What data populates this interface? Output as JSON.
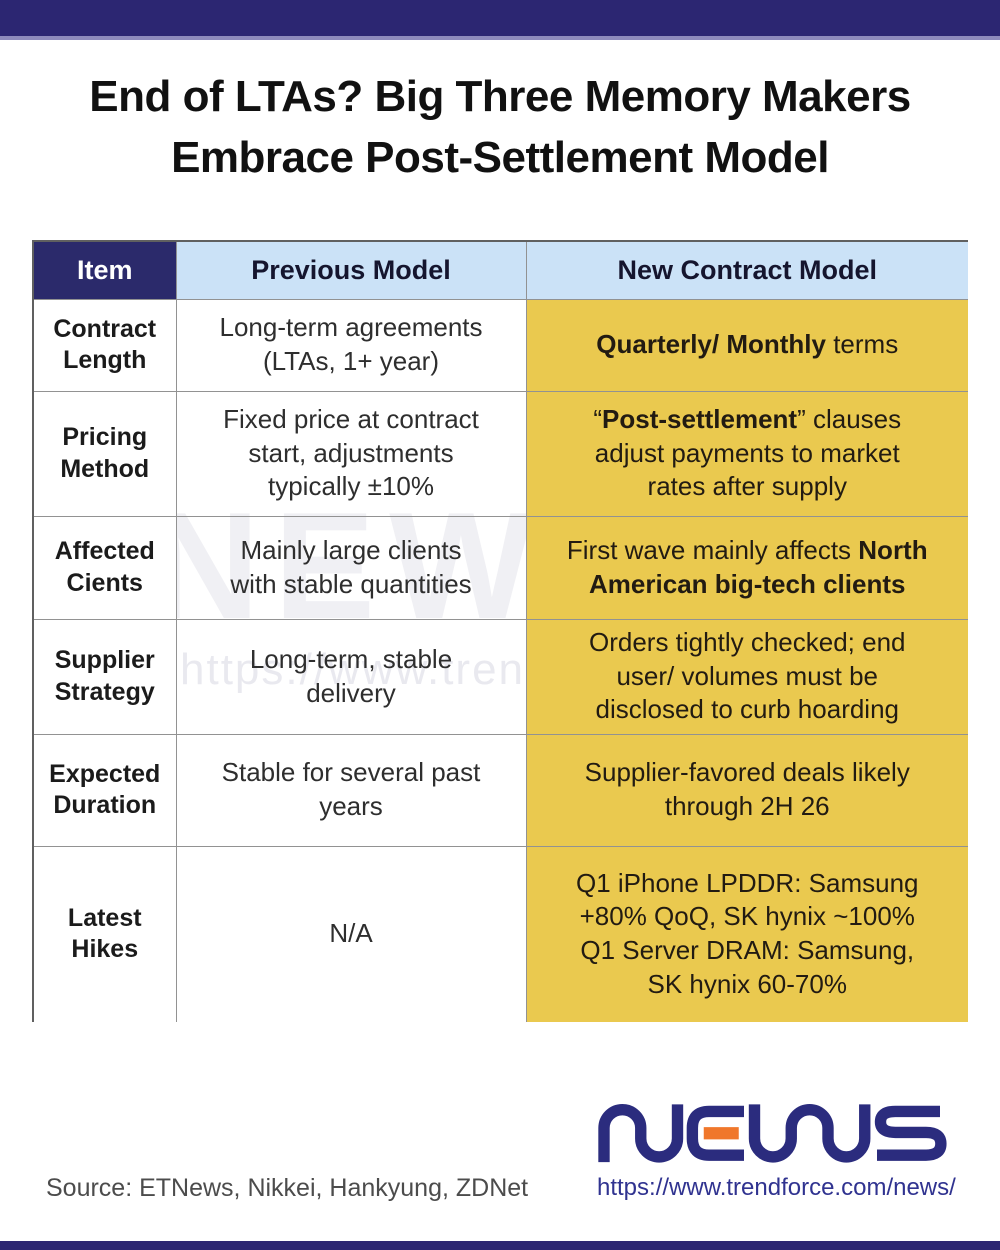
{
  "title": {
    "line1": "End of LTAs? Big Three Memory Makers",
    "line2": "Embrace Post-Settlement Model"
  },
  "table": {
    "headers": [
      {
        "label": "Item"
      },
      {
        "label": "Previous Model"
      },
      {
        "label": "New Contract Model"
      }
    ],
    "rows": [
      {
        "item": "Contract\nLength",
        "previous": "Long-term agreements\n(LTAs, 1+ year)",
        "new_segments": [
          {
            "text": "Quarterly/ Monthly",
            "bold": true
          },
          {
            "text": " terms",
            "bold": false
          }
        ]
      },
      {
        "item": "Pricing\nMethod",
        "previous": "Fixed price at contract\nstart, adjustments\ntypically ±10%",
        "new_segments": [
          {
            "text": "“",
            "bold": false
          },
          {
            "text": "Post-settlement",
            "bold": true
          },
          {
            "text": "” clauses\nadjust payments to market\nrates after supply",
            "bold": false
          }
        ]
      },
      {
        "item": "Affected\nCients",
        "previous": "Mainly large clients\nwith stable quantities",
        "new_segments": [
          {
            "text": "First wave mainly affects ",
            "bold": false
          },
          {
            "text": "North\nAmerican big-tech clients",
            "bold": true
          }
        ]
      },
      {
        "item": "Supplier\nStrategy",
        "previous": "Long-term, stable\ndelivery",
        "new_segments": [
          {
            "text": "Orders tightly checked; end\nuser/ volumes must be\ndisclosed to curb hoarding",
            "bold": false
          }
        ]
      },
      {
        "item": "Expected\nDuration",
        "previous": "Stable for several past\nyears",
        "new_segments": [
          {
            "text": "Supplier-favored deals likely\nthrough 2H 26",
            "bold": false
          }
        ]
      },
      {
        "item": "Latest\nHikes",
        "previous": "N/A",
        "new_segments": [
          {
            "text": "Q1 iPhone LPDDR: Samsung\n+80% QoQ, SK hynix ~100%\nQ1 Server DRAM: Samsung,\nSK hynix 60-70%",
            "bold": false
          }
        ]
      }
    ]
  },
  "watermark": {
    "logo_text": "NEWS",
    "url_text": "https://www.trendforce"
  },
  "footer": {
    "source": "Source: ETNews, Nikkei, Hankyung, ZDNet",
    "logo_text": "NEWS",
    "url": "https://www.trendforce.com/news/"
  },
  "colors": {
    "top_bar": "#2c2672",
    "top_bar_accent": "#8e8abc",
    "header_item_bg": "#2b2a6b",
    "header_bg": "#cbe2f7",
    "header_text": "#15152e",
    "highlight_bg": "#eac94f",
    "highlight_text": "#221b12",
    "title_text": "#111111",
    "body_text": "#2e2e2e",
    "item_text": "#1b1b1b",
    "border": "#929292",
    "outer_border": "#606060",
    "source_text": "#4c4c4c",
    "url_text": "#303390",
    "logo_navy": "#2b2c7e",
    "logo_orange": "#f0772b"
  }
}
